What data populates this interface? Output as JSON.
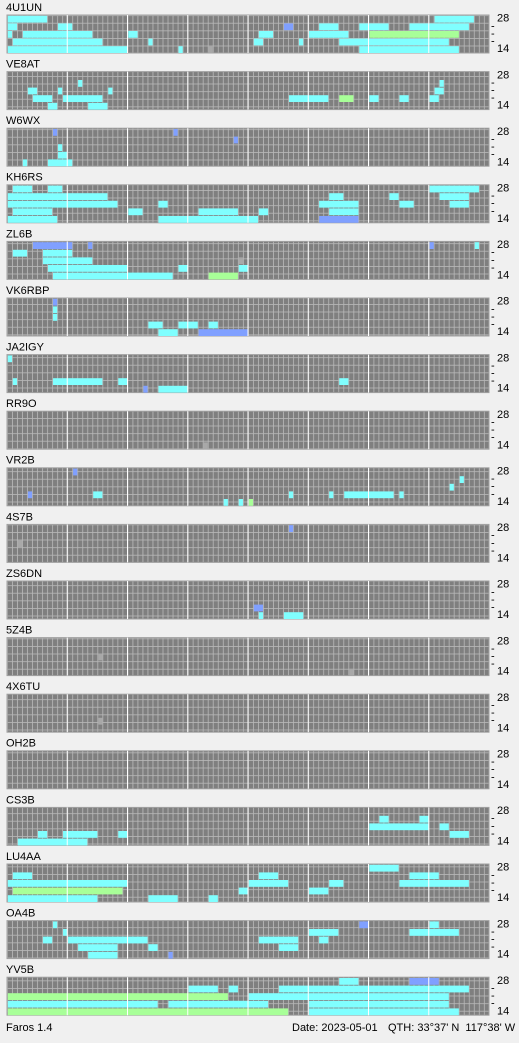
{
  "axis": {
    "top": "28",
    "mid": "-",
    "bottom": "14"
  },
  "colors": {
    "c": "#80ffff",
    "g": "#a8ff98",
    "b": "#80a0ff",
    "w": "#a8a8a8"
  },
  "panels": [
    {
      "label": "4U1UN",
      "hits": [
        [
          0,
          0,
          8,
          "c"
        ],
        [
          0,
          85,
          8,
          "c"
        ],
        [
          1,
          0,
          2,
          "c"
        ],
        [
          1,
          10,
          3,
          "c"
        ],
        [
          1,
          55,
          2,
          "b"
        ],
        [
          1,
          62,
          4,
          "c"
        ],
        [
          1,
          70,
          6,
          "c"
        ],
        [
          1,
          80,
          12,
          "c"
        ],
        [
          2,
          0,
          1,
          "c"
        ],
        [
          2,
          3,
          14,
          "c"
        ],
        [
          2,
          24,
          2,
          "c"
        ],
        [
          2,
          50,
          3,
          "c"
        ],
        [
          2,
          60,
          8,
          "c"
        ],
        [
          2,
          72,
          18,
          "g"
        ],
        [
          3,
          1,
          18,
          "c"
        ],
        [
          3,
          28,
          1,
          "c"
        ],
        [
          3,
          49,
          2,
          "c"
        ],
        [
          3,
          58,
          1,
          "c"
        ],
        [
          3,
          66,
          22,
          "c"
        ],
        [
          4,
          0,
          24,
          "c"
        ],
        [
          4,
          34,
          1,
          "c"
        ],
        [
          4,
          40,
          1,
          "w"
        ],
        [
          4,
          70,
          20,
          "c"
        ]
      ]
    },
    {
      "label": "VE8AT",
      "hits": [
        [
          1,
          14,
          1,
          "c"
        ],
        [
          1,
          86,
          1,
          "c"
        ],
        [
          2,
          4,
          2,
          "c"
        ],
        [
          2,
          10,
          1,
          "c"
        ],
        [
          2,
          20,
          1,
          "c"
        ],
        [
          2,
          85,
          2,
          "c"
        ],
        [
          3,
          5,
          4,
          "c"
        ],
        [
          3,
          11,
          8,
          "c"
        ],
        [
          3,
          56,
          8,
          "c"
        ],
        [
          3,
          66,
          3,
          "g"
        ],
        [
          3,
          72,
          2,
          "c"
        ],
        [
          3,
          78,
          2,
          "c"
        ],
        [
          3,
          84,
          2,
          "c"
        ],
        [
          4,
          8,
          2,
          "c"
        ],
        [
          4,
          16,
          4,
          "c"
        ]
      ]
    },
    {
      "label": "W6WX",
      "hits": [
        [
          0,
          9,
          1,
          "b"
        ],
        [
          0,
          33,
          1,
          "b"
        ],
        [
          1,
          45,
          1,
          "b"
        ],
        [
          2,
          10,
          1,
          "c"
        ],
        [
          3,
          10,
          2,
          "c"
        ],
        [
          4,
          3,
          1,
          "c"
        ],
        [
          4,
          8,
          5,
          "c"
        ]
      ]
    },
    {
      "label": "KH6RS",
      "hits": [
        [
          0,
          1,
          4,
          "c"
        ],
        [
          0,
          8,
          3,
          "c"
        ],
        [
          0,
          84,
          10,
          "c"
        ],
        [
          1,
          0,
          20,
          "c"
        ],
        [
          1,
          64,
          3,
          "c"
        ],
        [
          1,
          76,
          2,
          "c"
        ],
        [
          1,
          86,
          6,
          "c"
        ],
        [
          2,
          0,
          22,
          "c"
        ],
        [
          2,
          30,
          2,
          "c"
        ],
        [
          2,
          62,
          8,
          "c"
        ],
        [
          2,
          78,
          3,
          "c"
        ],
        [
          2,
          88,
          4,
          "c"
        ],
        [
          3,
          1,
          8,
          "c"
        ],
        [
          3,
          24,
          3,
          "c"
        ],
        [
          3,
          38,
          8,
          "c"
        ],
        [
          3,
          50,
          2,
          "c"
        ],
        [
          3,
          64,
          6,
          "c"
        ],
        [
          4,
          0,
          10,
          "c"
        ],
        [
          4,
          30,
          20,
          "c"
        ],
        [
          4,
          62,
          8,
          "b"
        ]
      ]
    },
    {
      "label": "ZL6B",
      "hits": [
        [
          0,
          5,
          8,
          "b"
        ],
        [
          0,
          16,
          1,
          "b"
        ],
        [
          0,
          84,
          1,
          "b"
        ],
        [
          0,
          93,
          1,
          "c"
        ],
        [
          1,
          1,
          3,
          "c"
        ],
        [
          1,
          7,
          6,
          "c"
        ],
        [
          2,
          7,
          10,
          "c"
        ],
        [
          2,
          46,
          1,
          "w"
        ],
        [
          3,
          8,
          16,
          "c"
        ],
        [
          3,
          34,
          2,
          "c"
        ],
        [
          3,
          46,
          2,
          "c"
        ],
        [
          4,
          9,
          24,
          "c"
        ],
        [
          4,
          40,
          6,
          "g"
        ]
      ]
    },
    {
      "label": "VK6RBP",
      "hits": [
        [
          0,
          9,
          1,
          "b"
        ],
        [
          1,
          9,
          1,
          "c"
        ],
        [
          2,
          9,
          1,
          "c"
        ],
        [
          3,
          28,
          3,
          "c"
        ],
        [
          3,
          34,
          4,
          "c"
        ],
        [
          3,
          40,
          2,
          "c"
        ],
        [
          4,
          30,
          4,
          "c"
        ],
        [
          4,
          38,
          10,
          "b"
        ]
      ]
    },
    {
      "label": "JA2IGY",
      "hits": [
        [
          0,
          0,
          1,
          "c"
        ],
        [
          3,
          1,
          1,
          "c"
        ],
        [
          3,
          9,
          10,
          "c"
        ],
        [
          3,
          22,
          2,
          "c"
        ],
        [
          3,
          66,
          2,
          "c"
        ],
        [
          4,
          27,
          1,
          "b"
        ],
        [
          4,
          30,
          6,
          "c"
        ]
      ]
    },
    {
      "label": "RR9O",
      "hits": [
        [
          4,
          39,
          1,
          "w"
        ]
      ]
    },
    {
      "label": "VR2B",
      "hits": [
        [
          0,
          13,
          1,
          "b"
        ],
        [
          1,
          90,
          1,
          "c"
        ],
        [
          2,
          88,
          1,
          "c"
        ],
        [
          3,
          4,
          1,
          "b"
        ],
        [
          3,
          17,
          2,
          "c"
        ],
        [
          3,
          56,
          1,
          "c"
        ],
        [
          3,
          64,
          1,
          "c"
        ],
        [
          3,
          67,
          10,
          "c"
        ],
        [
          3,
          78,
          1,
          "c"
        ],
        [
          4,
          43,
          1,
          "c"
        ],
        [
          4,
          46,
          1,
          "c"
        ],
        [
          4,
          48,
          1,
          "g"
        ]
      ]
    },
    {
      "label": "4S7B",
      "hits": [
        [
          0,
          56,
          1,
          "b"
        ],
        [
          2,
          2,
          1,
          "w"
        ]
      ]
    },
    {
      "label": "ZS6DN",
      "hits": [
        [
          3,
          49,
          2,
          "b"
        ],
        [
          4,
          50,
          1,
          "c"
        ],
        [
          4,
          55,
          4,
          "c"
        ]
      ]
    },
    {
      "label": "5Z4B",
      "hits": [
        [
          2,
          18,
          1,
          "w"
        ],
        [
          4,
          68,
          1,
          "w"
        ]
      ]
    },
    {
      "label": "4X6TU",
      "hits": [
        [
          3,
          18,
          1,
          "w"
        ]
      ]
    },
    {
      "label": "OH2B",
      "hits": []
    },
    {
      "label": "CS3B",
      "hits": [
        [
          1,
          74,
          2,
          "c"
        ],
        [
          1,
          82,
          2,
          "c"
        ],
        [
          2,
          72,
          12,
          "c"
        ],
        [
          2,
          86,
          2,
          "c"
        ],
        [
          3,
          6,
          2,
          "c"
        ],
        [
          3,
          11,
          7,
          "c"
        ],
        [
          3,
          22,
          2,
          "c"
        ],
        [
          3,
          88,
          4,
          "c"
        ],
        [
          4,
          2,
          14,
          "c"
        ]
      ]
    },
    {
      "label": "LU4AA",
      "hits": [
        [
          0,
          72,
          6,
          "c"
        ],
        [
          1,
          1,
          4,
          "c"
        ],
        [
          1,
          50,
          4,
          "c"
        ],
        [
          1,
          80,
          6,
          "c"
        ],
        [
          2,
          0,
          24,
          "c"
        ],
        [
          2,
          48,
          8,
          "c"
        ],
        [
          2,
          64,
          3,
          "c"
        ],
        [
          2,
          78,
          14,
          "c"
        ],
        [
          3,
          1,
          22,
          "g"
        ],
        [
          3,
          46,
          2,
          "c"
        ],
        [
          3,
          60,
          4,
          "c"
        ],
        [
          4,
          0,
          18,
          "c"
        ],
        [
          4,
          28,
          6,
          "c"
        ],
        [
          4,
          40,
          2,
          "c"
        ]
      ]
    },
    {
      "label": "OA4B",
      "hits": [
        [
          0,
          9,
          1,
          "c"
        ],
        [
          0,
          70,
          2,
          "b"
        ],
        [
          0,
          84,
          2,
          "c"
        ],
        [
          1,
          11,
          1,
          "c"
        ],
        [
          1,
          60,
          6,
          "c"
        ],
        [
          1,
          80,
          10,
          "c"
        ],
        [
          2,
          7,
          2,
          "c"
        ],
        [
          2,
          12,
          16,
          "c"
        ],
        [
          2,
          50,
          8,
          "c"
        ],
        [
          2,
          62,
          2,
          "c"
        ],
        [
          3,
          14,
          8,
          "c"
        ],
        [
          3,
          28,
          2,
          "c"
        ],
        [
          3,
          54,
          4,
          "c"
        ],
        [
          4,
          16,
          6,
          "c"
        ],
        [
          4,
          32,
          1,
          "b"
        ]
      ]
    },
    {
      "label": "YV5B",
      "hits": [
        [
          0,
          66,
          4,
          "c"
        ],
        [
          0,
          80,
          6,
          "b"
        ],
        [
          1,
          36,
          6,
          "c"
        ],
        [
          1,
          44,
          2,
          "c"
        ],
        [
          1,
          54,
          38,
          "c"
        ],
        [
          2,
          0,
          44,
          "g"
        ],
        [
          2,
          48,
          40,
          "c"
        ],
        [
          3,
          0,
          30,
          "c"
        ],
        [
          3,
          32,
          20,
          "c"
        ],
        [
          3,
          60,
          28,
          "c"
        ],
        [
          4,
          0,
          56,
          "g"
        ],
        [
          4,
          60,
          30,
          "c"
        ]
      ]
    }
  ],
  "status": {
    "app": "Faros 1.4",
    "date": "Date: 2023-05-01",
    "qth": "QTH: 33°37' N  117°38' W"
  }
}
